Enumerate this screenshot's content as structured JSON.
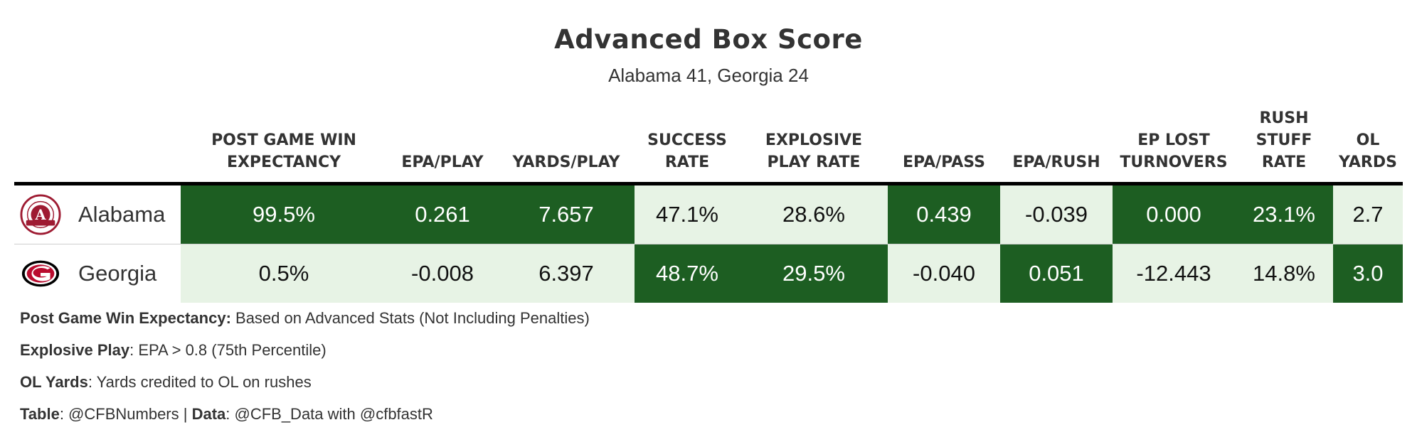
{
  "chart_data": {
    "type": "table",
    "title": "Advanced Box Score",
    "subtitle": "Alabama 41, Georgia 24",
    "columns": [
      "POST GAME WIN EXPECTANCY",
      "EPA/PLAY",
      "YARDS/PLAY",
      "SUCCESS RATE",
      "EXPLOSIVE PLAY RATE",
      "EPA/PASS",
      "EPA/RUSH",
      "EP LOST TURNOVERS",
      "RUSH STUFF RATE",
      "OL YARDS"
    ],
    "rows": [
      {
        "team": "Alabama",
        "logo_icon": "alabama-logo",
        "values": [
          "99.5%",
          "0.261",
          "7.657",
          "47.1%",
          "28.6%",
          "0.439",
          "-0.039",
          "0.000",
          "23.1%",
          "2.7"
        ],
        "highlight": [
          true,
          true,
          true,
          false,
          false,
          true,
          false,
          true,
          true,
          false
        ]
      },
      {
        "team": "Georgia",
        "logo_icon": "georgia-logo",
        "values": [
          "0.5%",
          "-0.008",
          "6.397",
          "48.7%",
          "29.5%",
          "-0.040",
          "0.051",
          "-12.443",
          "14.8%",
          "3.0"
        ],
        "highlight": [
          false,
          false,
          false,
          true,
          true,
          false,
          true,
          false,
          false,
          true
        ]
      }
    ],
    "colors": {
      "highlight_fill": "#1d5e22",
      "base_fill": "#e7f3e5",
      "alabama_crimson": "#9e1b32",
      "georgia_red": "#ba0c2f"
    }
  },
  "notes": [
    {
      "label": "Post Game Win Expectancy:",
      "text": " Based on Advanced Stats (Not Including Penalties)"
    },
    {
      "label": "Explosive Play",
      "text": ": EPA > 0.8 (75th Percentile)"
    },
    {
      "label": "OL Yards",
      "text": ": Yards credited to OL on rushes"
    }
  ],
  "credits": {
    "table_label": "Table",
    "table_text": ": @CFBNumbers | ",
    "data_label": "Data",
    "data_text": ": @CFB_Data with @cfbfastR"
  }
}
